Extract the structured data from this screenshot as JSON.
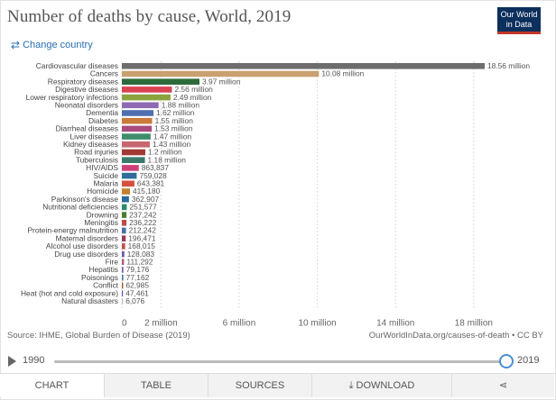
{
  "title": "Number of deaths by cause, World, 2019",
  "logo": {
    "line1": "Our World",
    "line2": "in Data"
  },
  "change_country": {
    "icon": "swap-icon",
    "label": "Change country"
  },
  "chart_data": {
    "type": "bar",
    "orientation": "horizontal",
    "title": "Number of deaths by cause, World, 2019",
    "xlim": [
      0,
      19000000
    ],
    "ticks": [
      0,
      2000000,
      6000000,
      10000000,
      14000000,
      18000000
    ],
    "tick_labels": [
      "0",
      "2 million",
      "6 million",
      "10 million",
      "14 million",
      "18 million"
    ],
    "categories": [
      "Cardiovascular diseases",
      "Cancers",
      "Respiratory diseases",
      "Digestive diseases",
      "Lower respiratory infections",
      "Neonatal disorders",
      "Dementia",
      "Diabetes",
      "Diarrheal diseases",
      "Liver diseases",
      "Kidney diseases",
      "Road injuries",
      "Tuberculosis",
      "HIV/AIDS",
      "Suicide",
      "Malaria",
      "Homicide",
      "Parkinson's disease",
      "Nutritional deficiencies",
      "Drowning",
      "Meningitis",
      "Protein-energy malnutrition",
      "Maternal disorders",
      "Alcohol use disorders",
      "Drug use disorders",
      "Fire",
      "Hepatitis",
      "Poisonings",
      "Conflict",
      "Heat (hot and cold exposure)",
      "Natural disasters"
    ],
    "values": [
      18560000,
      10080000,
      3970000,
      2560000,
      2490000,
      1880000,
      1620000,
      1550000,
      1530000,
      1470000,
      1430000,
      1200000,
      1180000,
      863837,
      759028,
      643381,
      415180,
      362907,
      251577,
      237242,
      236222,
      212242,
      196471,
      168015,
      128083,
      111292,
      79176,
      77162,
      62985,
      47461,
      6076
    ],
    "value_labels": [
      "18.56 million",
      "10.08 million",
      "3.97 million",
      "2.56 million",
      "2.49 million",
      "1.88 million",
      "1.62 million",
      "1.55 million",
      "1.53 million",
      "1.47 million",
      "1.43 million",
      "1.2 million",
      "1.18 million",
      "863,837",
      "759,028",
      "643,381",
      "415,180",
      "362,907",
      "251,577",
      "237,242",
      "236,222",
      "212,242",
      "196,471",
      "168,015",
      "128,083",
      "111,292",
      "79,176",
      "77,162",
      "62,985",
      "47,461",
      "6,076"
    ],
    "colors": [
      "#6d6d6d",
      "#c9a070",
      "#2e6b3a",
      "#d94452",
      "#8aa33c",
      "#8f69b2",
      "#4f6fb0",
      "#c97a3a",
      "#a94a7f",
      "#3f8d6b",
      "#c7676f",
      "#a33a35",
      "#3c7a6b",
      "#cf3f78",
      "#2f6e9a",
      "#d4503e",
      "#c3802e",
      "#2a6a9e",
      "#2e8a6a",
      "#4a7d2e",
      "#c04a4a",
      "#4a6fa8",
      "#9a3a5a",
      "#c0504d",
      "#6a5aa8",
      "#b25a7a",
      "#7a5ab0",
      "#4a7f9a",
      "#a0522d",
      "#5a5ab0",
      "#bdbdbd"
    ]
  },
  "source": "Source: IHME, Global Burden of Disease (2019)",
  "ccby": "OurWorldInData.org/causes-of-death • CC BY",
  "timeline": {
    "start": "1990",
    "end": "2019"
  },
  "tabs": [
    {
      "label": "CHART",
      "icon": ""
    },
    {
      "label": "TABLE",
      "icon": ""
    },
    {
      "label": "SOURCES",
      "icon": ""
    },
    {
      "label": "DOWNLOAD",
      "icon": "download-icon"
    },
    {
      "label": "",
      "icon": "share-icon"
    }
  ]
}
